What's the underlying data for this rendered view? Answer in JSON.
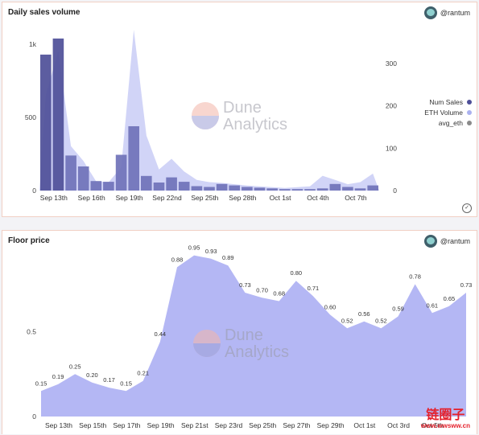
{
  "chart_data": [
    {
      "type": "bar",
      "title": "Daily sales volume",
      "author": "@rantum",
      "x_tick_labels": [
        "Sep 13th",
        "Sep 16th",
        "Sep 19th",
        "Sep 22nd",
        "Sep 25th",
        "Sep 28th",
        "Oct 1st",
        "Oct 4th",
        "Oct 7th"
      ],
      "y_left_ticks": [
        "0",
        "500",
        "1k"
      ],
      "y_right_ticks": [
        "0",
        "100",
        "200",
        "300"
      ],
      "ylim_left": [
        0,
        1100
      ],
      "ylim_right": [
        0,
        380
      ],
      "legend": [
        {
          "name": "Num Sales",
          "color": "#4e4f98"
        },
        {
          "name": "ETH Volume",
          "color": "#aab1ef"
        },
        {
          "name": "avg_eth",
          "color": "#8a8a8a"
        }
      ],
      "legend_position": "right",
      "series": [
        {
          "name": "Num Sales",
          "axis": "left",
          "values": [
            930,
            1040,
            240,
            165,
            65,
            60,
            245,
            440,
            100,
            55,
            90,
            60,
            30,
            25,
            45,
            35,
            25,
            20,
            15,
            10,
            10,
            10,
            15,
            45,
            25,
            15,
            35
          ]
        },
        {
          "name": "ETH Volume",
          "axis": "right",
          "values": [
            225,
            330,
            105,
            70,
            22,
            20,
            55,
            380,
            130,
            50,
            75,
            45,
            25,
            20,
            18,
            15,
            12,
            10,
            8,
            6,
            8,
            10,
            35,
            25,
            15,
            20,
            40
          ]
        }
      ],
      "watermark": [
        "Dune",
        "Analytics"
      ]
    },
    {
      "type": "area",
      "title": "Floor price",
      "author": "@rantum",
      "x_tick_labels": [
        "Sep 13th",
        "Sep 15th",
        "Sep 17th",
        "Sep 19th",
        "Sep 21st",
        "Sep 23rd",
        "Sep 25th",
        "Sep 27th",
        "Sep 29th",
        "Oct 1st",
        "Oct 3rd",
        "Oct 5th"
      ],
      "y_ticks": [
        "0",
        "0.5"
      ],
      "ylim": [
        0,
        1.0
      ],
      "series": [
        {
          "name": "Floor price",
          "values": [
            0.15,
            0.19,
            0.25,
            0.2,
            0.17,
            0.15,
            0.21,
            0.44,
            0.88,
            0.95,
            0.93,
            0.89,
            0.73,
            0.7,
            0.68,
            0.8,
            0.71,
            0.6,
            0.52,
            0.56,
            0.52,
            0.59,
            0.78,
            0.61,
            0.65,
            0.73
          ],
          "labels": [
            "0.15",
            "0.19",
            "0.25",
            "0.20",
            "0.17",
            "0.15",
            "0.21",
            "0.44",
            "0.88",
            "0.95",
            "0.93",
            "0.89",
            "0.73",
            "0.70",
            "0.68",
            "0.80",
            "0.71",
            "0.60",
            "0.52",
            "0.56",
            "0.52",
            "0.59",
            "0.78",
            "0.61",
            "0.65",
            "0.73"
          ]
        }
      ],
      "watermark": [
        "Dune",
        "Analytics"
      ]
    }
  ],
  "site_watermark": {
    "cn": "链圈子",
    "url": "www.wwsww.cn"
  },
  "colors": {
    "bars": "#6f72b8",
    "bars_dark": "#4e4f98",
    "area": "#c9cdf6",
    "floor_area": "#b4b7f4"
  }
}
